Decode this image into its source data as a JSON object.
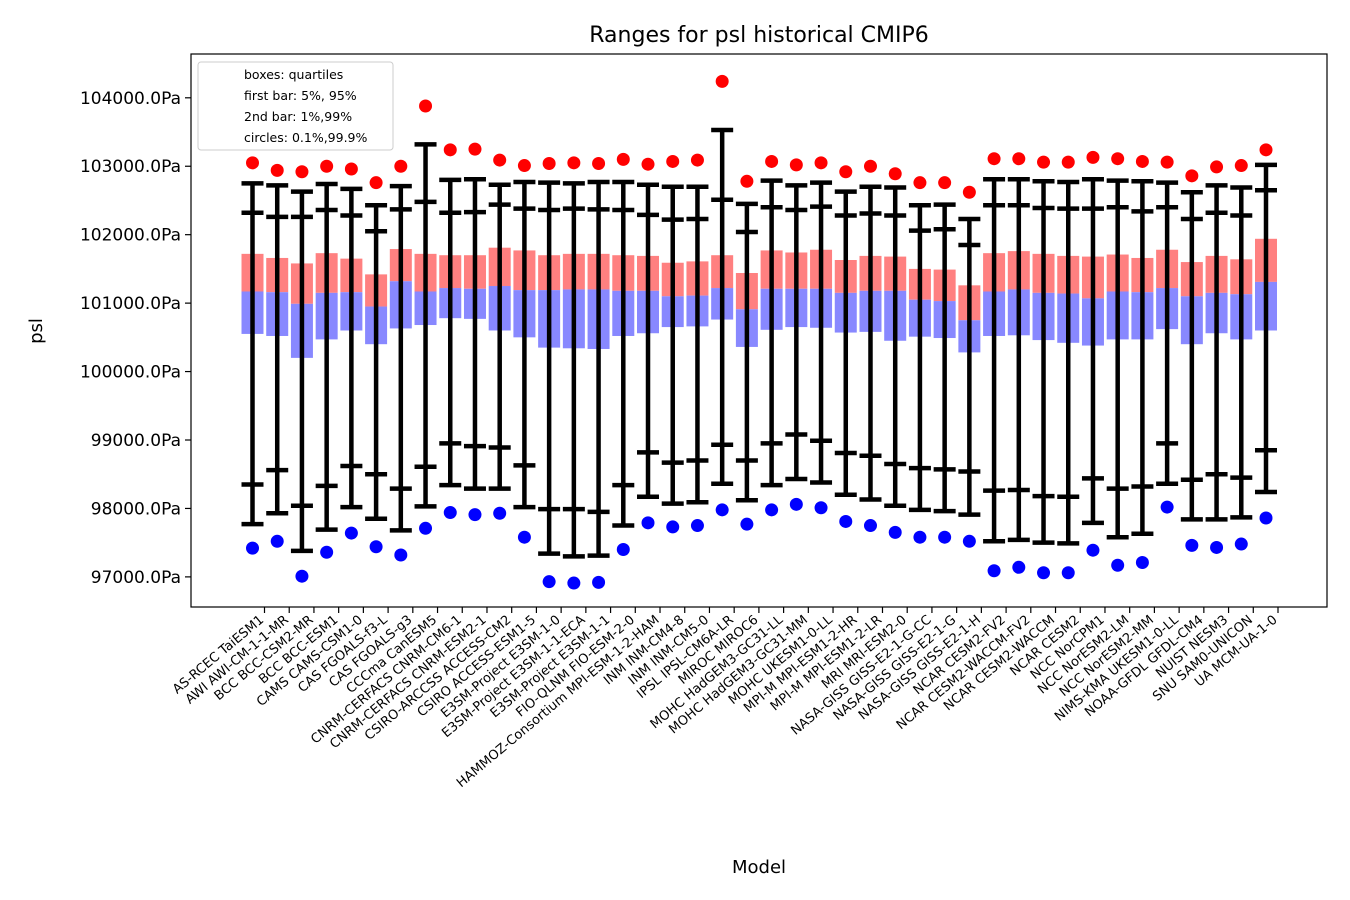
{
  "chart_data": {
    "type": "boxplot",
    "title": "Ranges for psl historical CMIP6",
    "xlabel": "Model",
    "ylabel": "psl",
    "ylim": [
      96560,
      104640
    ],
    "yticks": [
      97000,
      98000,
      99000,
      100000,
      101000,
      102000,
      103000,
      104000
    ],
    "ytick_labels": [
      "97000.0Pa",
      "98000.0Pa",
      "99000.0Pa",
      "100000.0Pa",
      "101000.0Pa",
      "102000.0Pa",
      "103000.0Pa",
      "104000.0Pa"
    ],
    "legend": {
      "placement": "top-left",
      "entries": [
        "boxes: quartiles",
        "first bar: 5%, 95%",
        "2nd bar: 1%,99%",
        "circles: 0.1%,99.9%"
      ]
    },
    "colors": {
      "upper_box": "#ff8080",
      "lower_box": "#8888ff",
      "bars": "#000000",
      "high_circle": "#ff0000",
      "low_circle": "#0000ff"
    },
    "models": [
      "AS-RCEC TaiESM1",
      "AWI AWI-CM-1-1-MR",
      "BCC BCC-CSM2-MR",
      "BCC BCC-ESM1",
      "CAMS CAMS-CSM1-0",
      "CAS FGOALS-f3-L",
      "CAS FGOALS-g3",
      "CCCma CanESM5",
      "CNRM-CERFACS CNRM-CM6-1",
      "CNRM-CERFACS CNRM-ESM2-1",
      "CSIRO-ARCCSS ACCESS-CM2",
      "CSIRO ACCESS-ESM1-5",
      "E3SM-Project E3SM-1-0",
      "E3SM-Project E3SM-1-1-ECA",
      "E3SM-Project E3SM-1-1",
      "FIO-QLNM FIO-ESM-2-0",
      "HAMMOZ-Consortium MPI-ESM-1-2-HAM",
      "INM INM-CM4-8",
      "INM INM-CM5-0",
      "IPSL IPSL-CM6A-LR",
      "MIROC MIROC6",
      "MOHC HadGEM3-GC31-LL",
      "MOHC HadGEM3-GC31-MM",
      "MOHC UKESM1-0-LL",
      "MPI-M MPI-ESM1-2-HR",
      "MPI-M MPI-ESM1-2-LR",
      "MRI MRI-ESM2-0",
      "NASA-GISS GISS-E2-1-G-CC",
      "NASA-GISS GISS-E2-1-G",
      "NASA-GISS GISS-E2-1-H",
      "NCAR CESM2-FV2",
      "NCAR CESM2-WACCM-FV2",
      "NCAR CESM2-WACCM",
      "NCAR CESM2",
      "NCC NorCPM1",
      "NCC NorESM2-LM",
      "NCC NorESM2-MM",
      "NIMS-KMA UKESM1-0-LL",
      "NOAA-GFDL GFDL-CM4",
      "NUIST NESM3",
      "SNU SAM0-UNICON",
      "UA MCM-UA-1-0"
    ],
    "q1": [
      100550,
      100520,
      100200,
      100470,
      100600,
      100400,
      100630,
      100680,
      100780,
      100770,
      100600,
      100500,
      100350,
      100340,
      100330,
      100520,
      100560,
      100650,
      100660,
      100760,
      100360,
      100610,
      100650,
      100640,
      100570,
      100580,
      100450,
      100510,
      100490,
      100280,
      100520,
      100530,
      100460,
      100420,
      100380,
      100470,
      100470,
      100620,
      100400,
      100560,
      100470,
      100600
    ],
    "median": [
      101170,
      101160,
      100990,
      101150,
      101160,
      100950,
      101320,
      101170,
      101220,
      101210,
      101250,
      101190,
      101190,
      101200,
      101200,
      101180,
      101180,
      101100,
      101110,
      101220,
      100910,
      101210,
      101210,
      101210,
      101150,
      101180,
      101180,
      101050,
      101030,
      100750,
      101170,
      101200,
      101150,
      101140,
      101070,
      101170,
      101160,
      101220,
      101100,
      101150,
      101130,
      101310
    ],
    "q3": [
      101720,
      101660,
      101580,
      101730,
      101650,
      101420,
      101790,
      101720,
      101700,
      101700,
      101810,
      101770,
      101700,
      101720,
      101720,
      101700,
      101690,
      101590,
      101610,
      101700,
      101440,
      101770,
      101740,
      101780,
      101630,
      101690,
      101680,
      101500,
      101490,
      101260,
      101730,
      101760,
      101720,
      101690,
      101680,
      101710,
      101660,
      101780,
      101600,
      101690,
      101640,
      101940
    ],
    "p5": [
      98350,
      98560,
      98040,
      98330,
      98620,
      98500,
      98290,
      98610,
      98950,
      98910,
      98890,
      98630,
      97990,
      97990,
      97950,
      98340,
      98820,
      98670,
      98700,
      98930,
      98700,
      98950,
      99080,
      98990,
      98810,
      98770,
      98650,
      98590,
      98570,
      98540,
      98260,
      98270,
      98180,
      98170,
      98440,
      98290,
      98320,
      98950,
      98420,
      98500,
      98450,
      98850
    ],
    "p95": [
      102320,
      102260,
      102260,
      102360,
      102280,
      102050,
      102370,
      102480,
      102320,
      102330,
      102440,
      102380,
      102360,
      102380,
      102370,
      102360,
      102290,
      102220,
      102230,
      102510,
      102040,
      102400,
      102360,
      102410,
      102280,
      102310,
      102280,
      102060,
      102080,
      101850,
      102430,
      102430,
      102390,
      102380,
      102380,
      102400,
      102340,
      102400,
      102230,
      102320,
      102280,
      102650
    ],
    "p1": [
      97770,
      97930,
      97380,
      97690,
      98020,
      97850,
      97680,
      98030,
      98340,
      98290,
      98290,
      98020,
      97340,
      97300,
      97310,
      97750,
      98170,
      98070,
      98090,
      98360,
      98120,
      98340,
      98430,
      98380,
      98200,
      98130,
      98040,
      97980,
      97960,
      97910,
      97520,
      97540,
      97500,
      97490,
      97790,
      97580,
      97630,
      98360,
      97840,
      97840,
      97870,
      98240
    ],
    "p99": [
      102750,
      102720,
      102630,
      102740,
      102670,
      102430,
      102710,
      103320,
      102800,
      102810,
      102730,
      102770,
      102760,
      102750,
      102770,
      102770,
      102730,
      102700,
      102700,
      103530,
      102450,
      102790,
      102720,
      102760,
      102630,
      102700,
      102690,
      102430,
      102440,
      102230,
      102810,
      102810,
      102780,
      102770,
      102810,
      102790,
      102780,
      102760,
      102620,
      102720,
      102690,
      103020
    ],
    "p01": [
      97420,
      97520,
      97010,
      97360,
      97640,
      97440,
      97320,
      97710,
      97940,
      97910,
      97930,
      97580,
      96930,
      96910,
      96920,
      97400,
      97790,
      97730,
      97750,
      97980,
      97770,
      97980,
      98060,
      98010,
      97810,
      97750,
      97650,
      97580,
      97580,
      97520,
      97090,
      97140,
      97060,
      97060,
      97390,
      97170,
      97210,
      98020,
      97460,
      97430,
      97480,
      97860
    ],
    "p999": [
      103050,
      102940,
      102920,
      103000,
      102960,
      102760,
      103000,
      103880,
      103240,
      103250,
      103090,
      103010,
      103040,
      103050,
      103040,
      103100,
      103030,
      103070,
      103090,
      104240,
      102780,
      103070,
      103020,
      103050,
      102920,
      103000,
      102890,
      102760,
      102760,
      102620,
      103110,
      103110,
      103060,
      103060,
      103130,
      103110,
      103070,
      103060,
      102860,
      102990,
      103010,
      103240
    ]
  }
}
